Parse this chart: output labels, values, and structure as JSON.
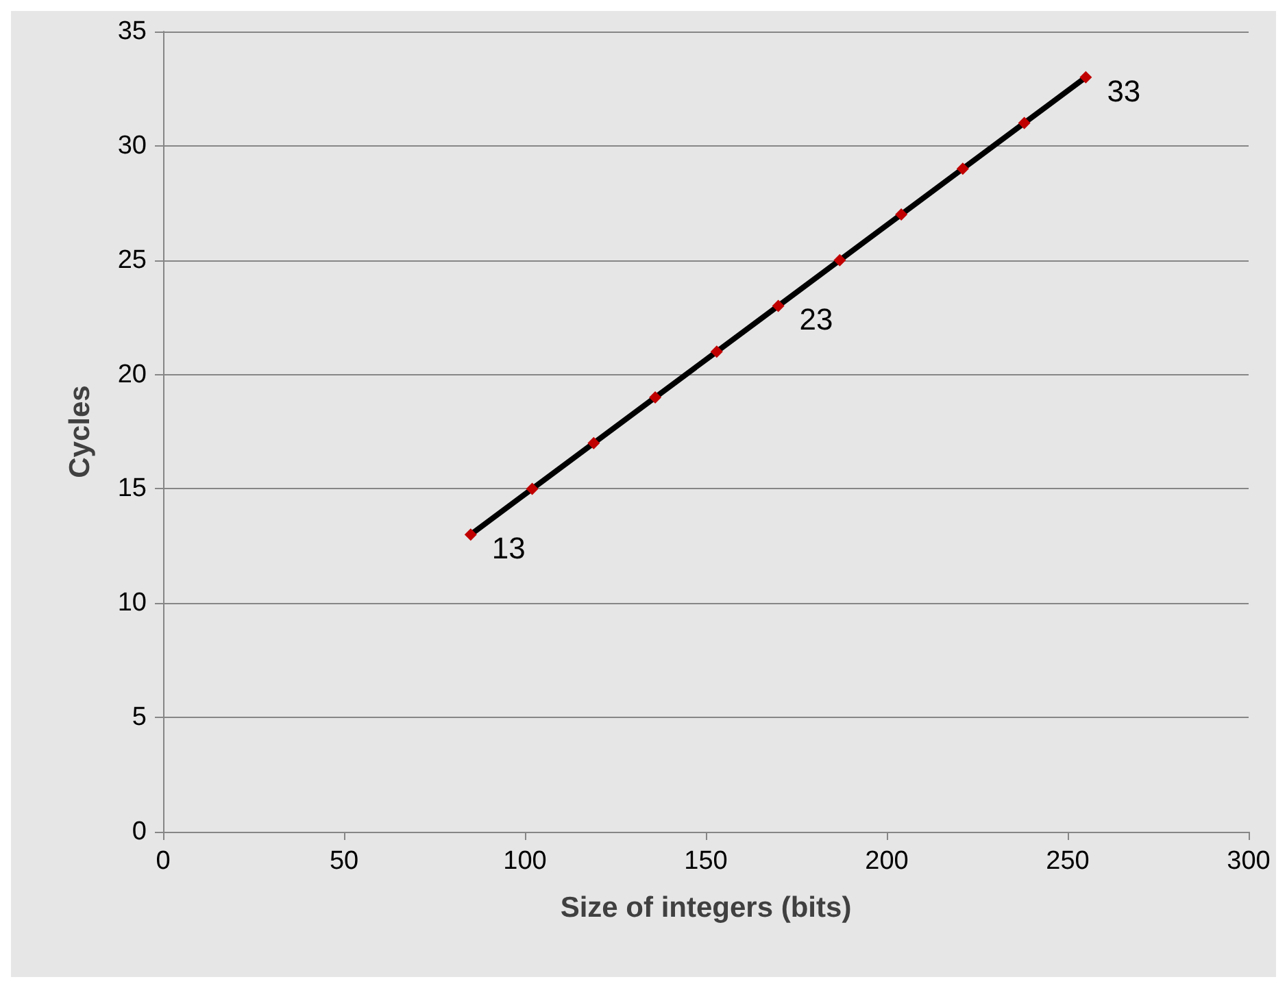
{
  "chart_data": {
    "type": "line",
    "xlabel": "Size of integers (bits)",
    "ylabel": "Cycles",
    "x": [
      85,
      102,
      119,
      136,
      153,
      170,
      187,
      204,
      221,
      238,
      255
    ],
    "series": [
      {
        "color": "#000000",
        "values": [
          13,
          15,
          17,
          19,
          21,
          23,
          25,
          27,
          29,
          31,
          33
        ],
        "value_labels": [
          "13",
          null,
          null,
          null,
          null,
          "23",
          null,
          null,
          null,
          null,
          "33"
        ]
      }
    ],
    "xlim": [
      0,
      300
    ],
    "xticks": [
      0,
      50,
      100,
      150,
      200,
      250,
      300
    ],
    "ylim": [
      0,
      35
    ],
    "yticks": [
      0,
      5,
      10,
      15,
      20,
      25,
      30,
      35
    ],
    "grid": "y",
    "marker": "diamond",
    "line_style": "solid"
  }
}
